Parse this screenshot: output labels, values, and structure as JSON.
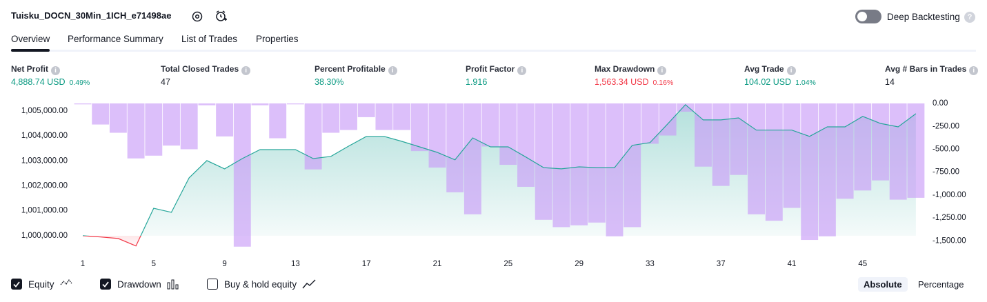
{
  "header": {
    "title": "Tuisku_DOCN_30Min_1ICH_e71498ae",
    "toggle_label": "Deep Backtesting",
    "toggle_on": false,
    "help": "?"
  },
  "tabs": {
    "items": [
      "Overview",
      "Performance Summary",
      "List of Trades",
      "Properties"
    ],
    "active": 0
  },
  "metrics": [
    {
      "label": "Net Profit",
      "value": "4,888.74 USD",
      "pct": "0.49%"
    },
    {
      "label": "Total Closed Trades",
      "value": "47"
    },
    {
      "label": "Percent Profitable",
      "value": "38.30%"
    },
    {
      "label": "Profit Factor",
      "value": "1.916"
    },
    {
      "label": "Max Drawdown",
      "value": "1,563.34 USD",
      "pct": "0.16%"
    },
    {
      "label": "Avg Trade",
      "value": "104.02 USD",
      "pct": "1.04%"
    },
    {
      "label": "Avg # Bars in Trades",
      "value": "14"
    }
  ],
  "chart_data": {
    "type": "equity-drawdown",
    "categories": [
      1,
      null,
      null,
      null,
      5,
      null,
      null,
      null,
      9,
      null,
      null,
      null,
      13,
      null,
      null,
      null,
      17,
      null,
      null,
      null,
      21,
      null,
      null,
      null,
      25,
      null,
      null,
      null,
      29,
      null,
      null,
      null,
      33,
      null,
      null,
      null,
      37,
      null,
      null,
      null,
      41,
      null,
      null,
      null,
      45,
      null,
      null,
      null
    ],
    "series": [
      {
        "name": "Equity",
        "type": "line",
        "axis": "y",
        "color": "#26a69a",
        "below_color": "#f23645",
        "values": [
          1000000,
          999950,
          999890,
          999590,
          1001100,
          1000940,
          1002320,
          1003010,
          1002680,
          1003090,
          1003450,
          1003450,
          1003450,
          1003090,
          1003180,
          1003590,
          1003980,
          1003980,
          1003780,
          1003560,
          1003340,
          1003040,
          1003920,
          1003560,
          1003560,
          1003150,
          1002730,
          1002680,
          1002760,
          1002730,
          1002730,
          1003620,
          1003730,
          1004480,
          1005250,
          1004640,
          1004640,
          1004720,
          1004230,
          1004230,
          1004230,
          1003980,
          1004360,
          1004360,
          1004780,
          1004500,
          1004360,
          1004889
        ]
      },
      {
        "name": "Drawdown",
        "type": "bar",
        "axis": "y2",
        "color": "#c99cf7",
        "values": [
          -10,
          -230,
          -320,
          -600,
          -570,
          -460,
          -500,
          -20,
          -360,
          -1563,
          -20,
          -380,
          -10,
          -720,
          -320,
          -290,
          -150,
          -290,
          -290,
          -520,
          -700,
          -970,
          -1210,
          -470,
          -670,
          -910,
          -1270,
          -1350,
          -1330,
          -1300,
          -1450,
          -1350,
          -440,
          -350,
          -90,
          -690,
          -900,
          -780,
          -1210,
          -1280,
          -1140,
          -1490,
          -1450,
          -1040,
          -950,
          -840,
          -1050,
          -1030
        ]
      }
    ],
    "ylim": [
      999500,
      1005300
    ],
    "yticks": [
      {
        "value": 1000000,
        "label": "1,000,000.00"
      },
      {
        "value": 1001000,
        "label": "1,001,000.00"
      },
      {
        "value": 1002000,
        "label": "1,002,000.00"
      },
      {
        "value": 1003000,
        "label": "1,003,000.00"
      },
      {
        "value": 1004000,
        "label": "1,004,000.00"
      },
      {
        "value": 1005000,
        "label": "1,005,000.00"
      }
    ],
    "y2lim": [
      -1580,
      0
    ],
    "y2ticks": [
      {
        "value": 0,
        "label": "0.00"
      },
      {
        "value": -250,
        "label": "-250.00"
      },
      {
        "value": -500,
        "label": "-500.00"
      },
      {
        "value": -750,
        "label": "-750.00"
      },
      {
        "value": -1000,
        "label": "-1,000.00"
      },
      {
        "value": -1250,
        "label": "-1,250.00"
      },
      {
        "value": -1500,
        "label": "-1,500.00"
      }
    ]
  },
  "legend": [
    {
      "label": "Equity",
      "checked": true
    },
    {
      "label": "Drawdown",
      "checked": true
    },
    {
      "label": "Buy & hold equity",
      "checked": false
    }
  ],
  "mode": {
    "items": [
      "Absolute",
      "Percentage"
    ],
    "active": 0
  }
}
